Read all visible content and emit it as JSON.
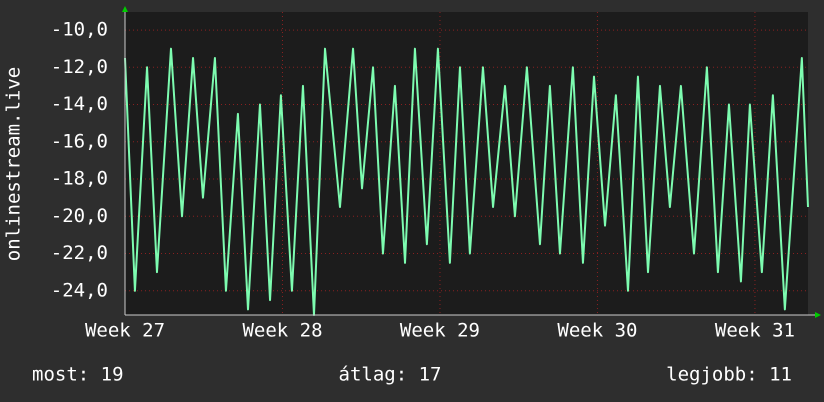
{
  "chart_data": {
    "type": "line",
    "ylabel": "onlinestream.live",
    "x": [
      27.0,
      27.063,
      27.14,
      27.203,
      27.292,
      27.362,
      27.432,
      27.495,
      27.571,
      27.641,
      27.717,
      27.781,
      27.857,
      27.921,
      27.99,
      28.06,
      28.13,
      28.2,
      28.27,
      28.365,
      28.448,
      28.505,
      28.575,
      28.638,
      28.714,
      28.778,
      28.841,
      28.917,
      28.987,
      29.063,
      29.127,
      29.19,
      29.273,
      29.337,
      29.413,
      29.476,
      29.552,
      29.635,
      29.698,
      29.762,
      29.844,
      29.908,
      29.978,
      30.048,
      30.117,
      30.194,
      30.257,
      30.321,
      30.397,
      30.46,
      30.53,
      30.613,
      30.695,
      30.765,
      30.835,
      30.911,
      30.968,
      31.044,
      31.114,
      31.19,
      31.298,
      31.337
    ],
    "series": [
      {
        "name": "onlinestream.live",
        "color": "#7dfcb0",
        "values": [
          -11.5,
          -24,
          -12,
          -23,
          -11,
          -20,
          -11.5,
          -19,
          -11.5,
          -24,
          -14.5,
          -25,
          -14,
          -24.5,
          -13.5,
          -24,
          -13,
          -25.3,
          -11,
          -19.5,
          -11,
          -18.5,
          -12,
          -22,
          -13,
          -22.5,
          -11,
          -21.5,
          -11,
          -22.5,
          -12,
          -22,
          -12,
          -19.5,
          -13,
          -20,
          -12,
          -21.5,
          -13,
          -22,
          -12,
          -22.5,
          -12.5,
          -20.5,
          -13.5,
          -24,
          -12.5,
          -23,
          -13,
          -19.5,
          -13,
          -22,
          -12,
          -23,
          -14,
          -23.5,
          -14,
          -23,
          -13.5,
          -25,
          -11.5,
          -19.5
        ]
      }
    ],
    "xlim": [
      27,
      31.337
    ],
    "xticks": [
      {
        "value": 27,
        "label": "Week 27"
      },
      {
        "value": 28,
        "label": "Week 28"
      },
      {
        "value": 29,
        "label": "Week 29"
      },
      {
        "value": 30,
        "label": "Week 30"
      },
      {
        "value": 31,
        "label": "Week 31"
      }
    ],
    "ylim": [
      -25.3,
      -9.03
    ],
    "yticks": [
      {
        "value": -10,
        "label": "-10,0"
      },
      {
        "value": -12,
        "label": "-12,0"
      },
      {
        "value": -14,
        "label": "-14,0"
      },
      {
        "value": -16,
        "label": "-16,0"
      },
      {
        "value": -18,
        "label": "-18,0"
      },
      {
        "value": -20,
        "label": "-20,0"
      },
      {
        "value": -22,
        "label": "-22,0"
      },
      {
        "value": -24,
        "label": "-24,0"
      }
    ],
    "grid": true,
    "footer": [
      "most: 19",
      "átlag: 17",
      "legjobb: 11"
    ]
  }
}
